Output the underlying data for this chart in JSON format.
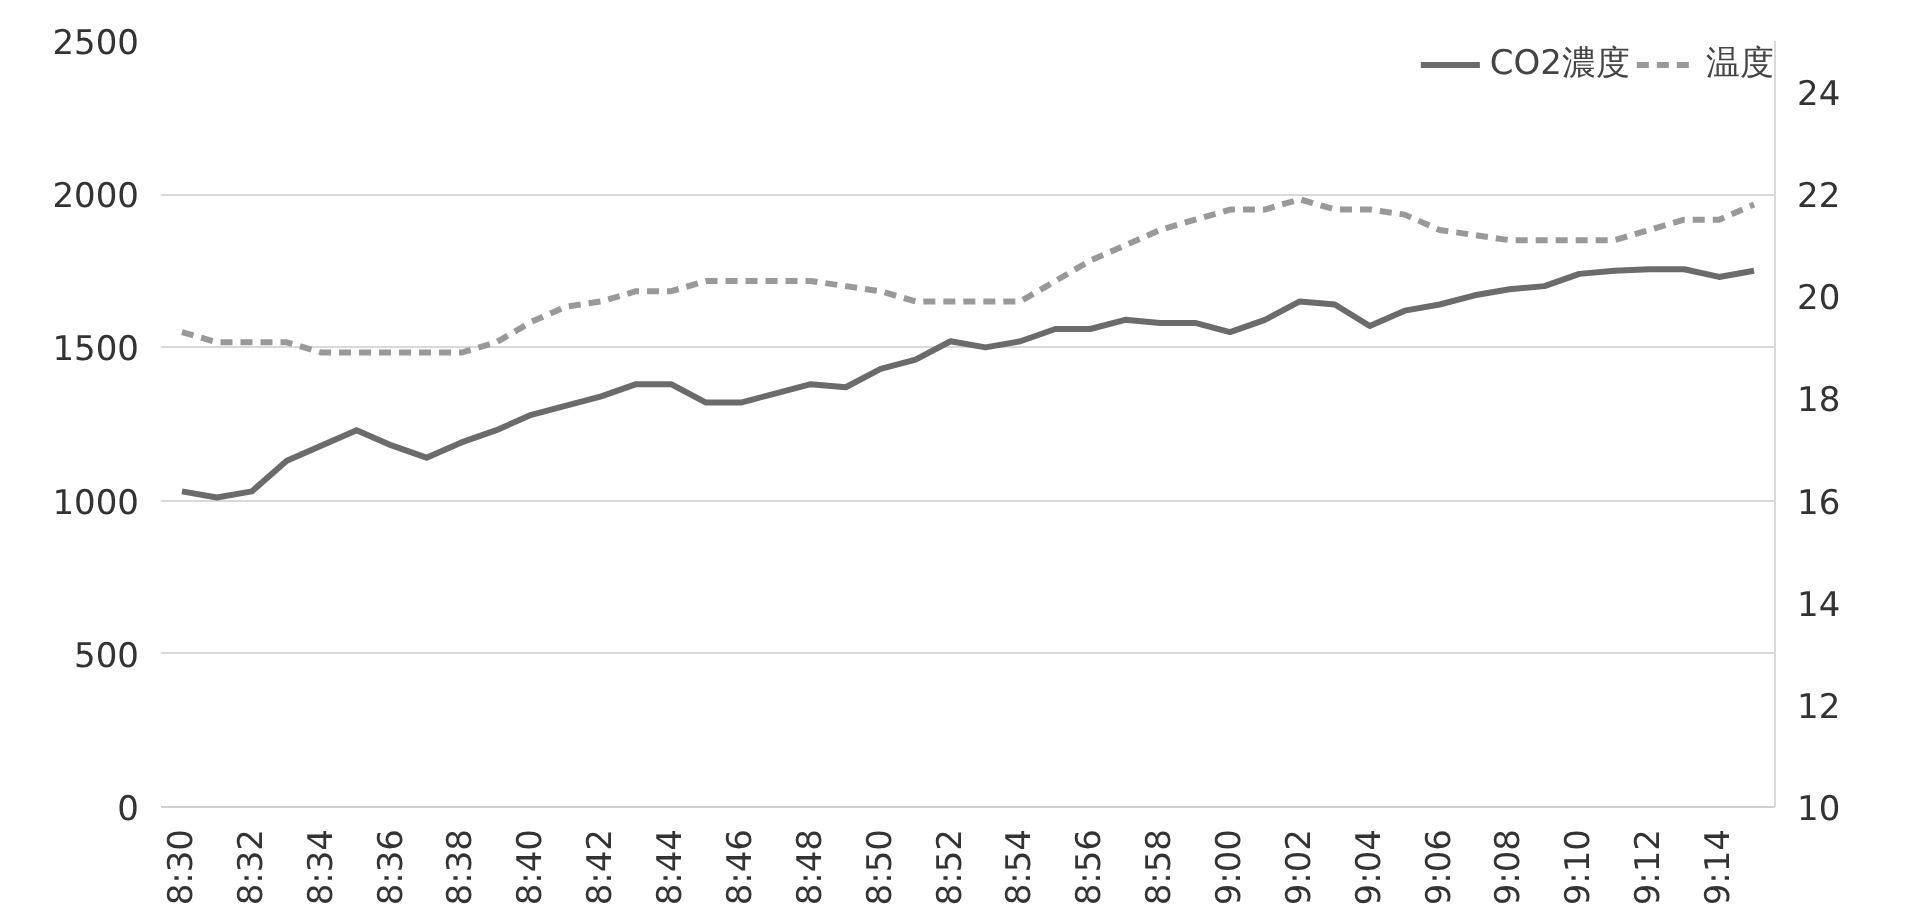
{
  "chart_data": {
    "type": "line",
    "categories": [
      "8:30",
      null,
      "8:32",
      null,
      "8:34",
      null,
      "8:36",
      null,
      "8:38",
      null,
      "8:40",
      null,
      "8:42",
      null,
      "8:44",
      null,
      "8:46",
      null,
      "8:48",
      null,
      "8:50",
      null,
      "8:52",
      null,
      "8:54",
      null,
      "8:56",
      null,
      "8:58",
      null,
      "9:00",
      null,
      "9:02",
      null,
      "9:04",
      null,
      "9:06",
      null,
      "9:08",
      null,
      "9:10",
      null,
      "9:12",
      null,
      "9:14",
      null
    ],
    "series": [
      {
        "name": "CO2濃度",
        "color": "#6b6b6b",
        "line_style": "solid",
        "values": [
          1030,
          1010,
          1030,
          1130,
          1180,
          1230,
          1180,
          1140,
          1190,
          1230,
          1280,
          1310,
          1340,
          1380,
          1380,
          1320,
          1320,
          1350,
          1380,
          1370,
          1430,
          1460,
          1520,
          1500,
          1520,
          1560,
          1560,
          1590,
          1580,
          1580,
          1550,
          1590,
          1650,
          1640,
          1570,
          1620,
          1640,
          1670,
          1690,
          1700,
          1740,
          1750,
          1755,
          1755,
          1730,
          1750
        ]
      },
      {
        "name": "温度",
        "color": "#999999",
        "line_style": "dashed",
        "axis": "y2",
        "values": [
          19.3,
          19.1,
          19.1,
          19.1,
          18.9,
          18.9,
          18.9,
          18.9,
          18.9,
          19.1,
          19.5,
          19.8,
          19.9,
          20.1,
          20.1,
          20.3,
          20.3,
          20.3,
          20.3,
          20.2,
          20.1,
          19.9,
          19.9,
          19.9,
          19.9,
          20.3,
          20.7,
          21.0,
          21.3,
          21.5,
          21.7,
          21.7,
          21.9,
          21.7,
          21.7,
          21.6,
          21.3,
          21.2,
          21.1,
          21.1,
          21.1,
          21.1,
          21.3,
          21.5,
          21.5,
          21.8
        ]
      }
    ],
    "ylim": [
      0,
      2500
    ],
    "yticks": [
      0,
      500,
      1000,
      1500,
      2000,
      2500
    ],
    "y2lim": [
      10,
      25
    ],
    "y2ticks": [
      10,
      12,
      14,
      16,
      18,
      20,
      22,
      24
    ],
    "grid": "y",
    "legend": "top right",
    "marker": "none"
  }
}
